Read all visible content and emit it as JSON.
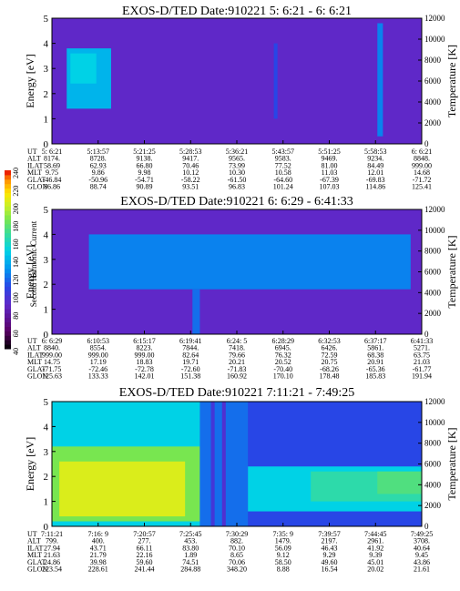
{
  "figure": {
    "colorbar": {
      "label": "Second Harmonic Current",
      "ticks": [
        "40",
        "60",
        "80",
        "100",
        "120",
        "140",
        "160",
        "180",
        "200",
        "220",
        "240"
      ]
    }
  },
  "chart_data": [
    {
      "type": "heatmap",
      "title": "EXOS-D/TED   Date:910221  5: 6:21 - 6: 6:21",
      "ylabel": "Energy [eV]",
      "ylabel_right": "Temperature [K]",
      "ylim": [
        0,
        5
      ],
      "yticks": [
        "0",
        "1",
        "2",
        "3",
        "4",
        "5"
      ],
      "ylim_right": [
        0,
        12000
      ],
      "yticks_right": [
        "0",
        "2000",
        "4000",
        "6000",
        "8000",
        "10000",
        "12000"
      ],
      "base_level": 90,
      "patches": [
        {
          "t0": 0.04,
          "t1": 0.16,
          "e0": 1.4,
          "e1": 3.8,
          "level": 140
        },
        {
          "t0": 0.05,
          "t1": 0.12,
          "e0": 2.4,
          "e1": 3.6,
          "level": 150
        },
        {
          "t0": 0.6,
          "t1": 0.61,
          "e0": 1.0,
          "e1": 4.0,
          "level": 110
        },
        {
          "t0": 0.88,
          "t1": 0.895,
          "e0": 0.3,
          "e1": 4.8,
          "level": 125
        }
      ],
      "table": {
        "row_labels": [
          "UT",
          "ALT",
          "ILAT",
          "MLT",
          "GLAT",
          "GLON"
        ],
        "columns": [
          [
            "5: 6:21",
            "8174.",
            "58.69",
            "9.75",
            "-46.84",
            "86.86"
          ],
          [
            "5:13:57",
            "8728.",
            "62.93",
            "9.86",
            "-50.96",
            "88.74"
          ],
          [
            "5:21:25",
            "9138.",
            "66.80",
            "9.98",
            "-54.71",
            "90.89"
          ],
          [
            "5:28:53",
            "9417.",
            "70.46",
            "10.12",
            "-58.22",
            "93.51"
          ],
          [
            "5:36:21",
            "9565.",
            "73.99",
            "10.30",
            "-61.50",
            "96.83"
          ],
          [
            "5:43:57",
            "9583.",
            "77.52",
            "10.58",
            "-64.60",
            "101.24"
          ],
          [
            "5:51:25",
            "9469.",
            "81.00",
            "11.03",
            "-67.39",
            "107.03"
          ],
          [
            "5:58:53",
            "9234.",
            "84.49",
            "12.01",
            "-69.83",
            "114.86"
          ],
          [
            "6: 6:21",
            "8848.",
            "999.00",
            "14.68",
            "-71.72",
            "125.41"
          ]
        ]
      }
    },
    {
      "type": "heatmap",
      "title": "EXOS-D/TED   Date:910221  6: 6:29 - 6:41:33",
      "ylabel": "Energy [eV]",
      "ylabel_right": "Temperature [K]",
      "ylim": [
        0,
        5
      ],
      "yticks": [
        "0",
        "1",
        "2",
        "3",
        "4",
        "5"
      ],
      "ylim_right": [
        0,
        12000
      ],
      "yticks_right": [
        "0",
        "2000",
        "4000",
        "6000",
        "8000",
        "10000",
        "12000"
      ],
      "base_level": 90,
      "patches": [
        {
          "t0": 0.1,
          "t1": 0.97,
          "e0": 1.8,
          "e1": 4.0,
          "level": 125
        },
        {
          "t0": 0.38,
          "t1": 0.4,
          "e0": 0.0,
          "e1": 1.8,
          "level": 120
        }
      ],
      "table": {
        "row_labels": [
          "UT",
          "ALT",
          "ILAT",
          "MLT",
          "GLAT",
          "GLON"
        ],
        "columns": [
          [
            "6: 6:29",
            "8840.",
            "999.00",
            "14.75",
            "-71.75",
            "125.63"
          ],
          [
            "6:10:53",
            "8554.",
            "999.00",
            "17.19",
            "-72.46",
            "133.33"
          ],
          [
            "6:15:17",
            "8223.",
            "999.00",
            "18.83",
            "-72.78",
            "142.01"
          ],
          [
            "6:19:41",
            "7844.",
            "82.64",
            "19.71",
            "-72.60",
            "151.38"
          ],
          [
            "6:24: 5",
            "7418.",
            "79.66",
            "20.21",
            "-71.83",
            "160.92"
          ],
          [
            "6:28:29",
            "6945.",
            "76.32",
            "20.52",
            "-70.40",
            "170.10"
          ],
          [
            "6:32:53",
            "6426.",
            "72.59",
            "20.75",
            "-68.26",
            "178.48"
          ],
          [
            "6:37:17",
            "5861.",
            "68.38",
            "20.91",
            "-65.36",
            "185.83"
          ],
          [
            "6:41:33",
            "5271.",
            "63.75",
            "21.03",
            "-61.77",
            "191.94"
          ]
        ]
      }
    },
    {
      "type": "heatmap",
      "title": "EXOS-D/TED   Date:910221  7:11:21 - 7:49:25",
      "ylabel": "Energy [eV]",
      "ylabel_right": "Temperature [K]",
      "ylim": [
        0,
        5
      ],
      "yticks": [
        "0",
        "1",
        "2",
        "3",
        "4",
        "5"
      ],
      "ylim_right": [
        0,
        12000
      ],
      "yticks_right": [
        "0",
        "2000",
        "4000",
        "6000",
        "8000",
        "10000",
        "12000"
      ],
      "base_level": 110,
      "patches": [
        {
          "t0": 0.0,
          "t1": 0.45,
          "e0": 0.0,
          "e1": 5.0,
          "level": 150
        },
        {
          "t0": 0.0,
          "t1": 0.4,
          "e0": 0.2,
          "e1": 3.2,
          "level": 185
        },
        {
          "t0": 0.02,
          "t1": 0.36,
          "e0": 0.4,
          "e1": 2.6,
          "level": 205
        },
        {
          "t0": 0.4,
          "t1": 0.53,
          "e0": 0.0,
          "e1": 5.0,
          "level": 120
        },
        {
          "t0": 0.43,
          "t1": 0.44,
          "e0": 0.0,
          "e1": 5.0,
          "level": 100
        },
        {
          "t0": 0.46,
          "t1": 0.47,
          "e0": 0.0,
          "e1": 5.0,
          "level": 95
        },
        {
          "t0": 0.53,
          "t1": 1.0,
          "e0": 0.6,
          "e1": 2.4,
          "level": 150
        },
        {
          "t0": 0.7,
          "t1": 1.0,
          "e0": 1.0,
          "e1": 2.2,
          "level": 165
        },
        {
          "t0": 0.88,
          "t1": 1.0,
          "e0": 1.3,
          "e1": 2.2,
          "level": 175
        }
      ],
      "table": {
        "row_labels": [
          "UT",
          "ALT",
          "ILAT",
          "MLT",
          "GLAT",
          "GLON"
        ],
        "columns": [
          [
            "7:11:21",
            "799.",
            "27.94",
            "21.63",
            "24.86",
            "223.54"
          ],
          [
            "7:16: 9",
            "400.",
            "43.71",
            "21.79",
            "39.98",
            "228.61"
          ],
          [
            "7:20:57",
            "277.",
            "66.11",
            "22.16",
            "59.60",
            "241.44"
          ],
          [
            "7:25:45",
            "453.",
            "83.80",
            "1.89",
            "74.51",
            "284.88"
          ],
          [
            "7:30:29",
            "882.",
            "70.10",
            "8.65",
            "70.06",
            "348.20"
          ],
          [
            "7:35: 9",
            "1479.",
            "56.09",
            "9.12",
            "58.50",
            "8.88"
          ],
          [
            "7:39:57",
            "2197.",
            "46.43",
            "9.29",
            "49.60",
            "16.54"
          ],
          [
            "7:44:45",
            "2961.",
            "41.92",
            "9.39",
            "45.01",
            "20.02"
          ],
          [
            "7:49:25",
            "3708.",
            "40.64",
            "9.45",
            "43.86",
            "21.61"
          ]
        ]
      }
    }
  ]
}
